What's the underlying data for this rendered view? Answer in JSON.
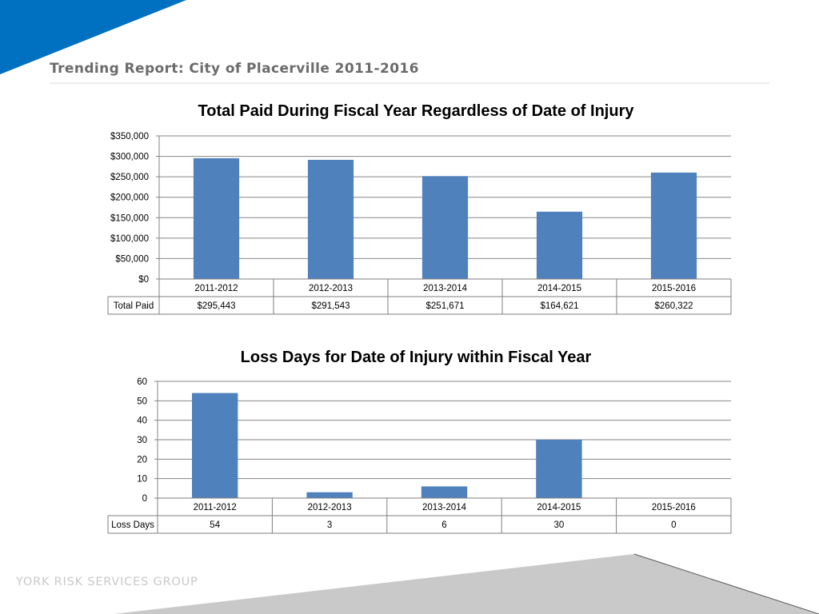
{
  "header": {
    "title": "Trending Report: City of Placerville 2011-2016"
  },
  "footer": {
    "brand": "YORK RISK SERVICES GROUP"
  },
  "colors": {
    "accent": "#0070c0",
    "bar": "#4f81bd",
    "rule": "#d9d9d9",
    "grid": "#868686",
    "footer_triangle": "#c9c9c9"
  },
  "chart_data": [
    {
      "type": "bar",
      "title": "Total Paid During Fiscal Year Regardless of Date of Injury",
      "categories": [
        "2011-2012",
        "2012-2013",
        "2013-2014",
        "2014-2015",
        "2015-2016"
      ],
      "series": [
        {
          "name": "Total Paid",
          "values": [
            295443,
            291543,
            251671,
            164621,
            260322
          ],
          "labels": [
            "$295,443",
            "$291,543",
            "$251,671",
            "$164,621",
            "$260,322"
          ]
        }
      ],
      "yticks": [
        "$0",
        "$50,000",
        "$100,000",
        "$150,000",
        "$200,000",
        "$250,000",
        "$300,000",
        "$350,000"
      ],
      "ylim": [
        0,
        350000
      ],
      "xlabel": "",
      "ylabel": "",
      "grid": true,
      "legend": "data-table"
    },
    {
      "type": "bar",
      "title": "Loss Days for Date of Injury within Fiscal Year",
      "categories": [
        "2011-2012",
        "2012-2013",
        "2013-2014",
        "2014-2015",
        "2015-2016"
      ],
      "series": [
        {
          "name": "Loss Days",
          "values": [
            54,
            3,
            6,
            30,
            0
          ],
          "labels": [
            "54",
            "3",
            "6",
            "30",
            "0"
          ]
        }
      ],
      "yticks": [
        "0",
        "10",
        "20",
        "30",
        "40",
        "50",
        "60"
      ],
      "ylim": [
        0,
        60
      ],
      "xlabel": "",
      "ylabel": "",
      "grid": true,
      "legend": "data-table"
    }
  ]
}
